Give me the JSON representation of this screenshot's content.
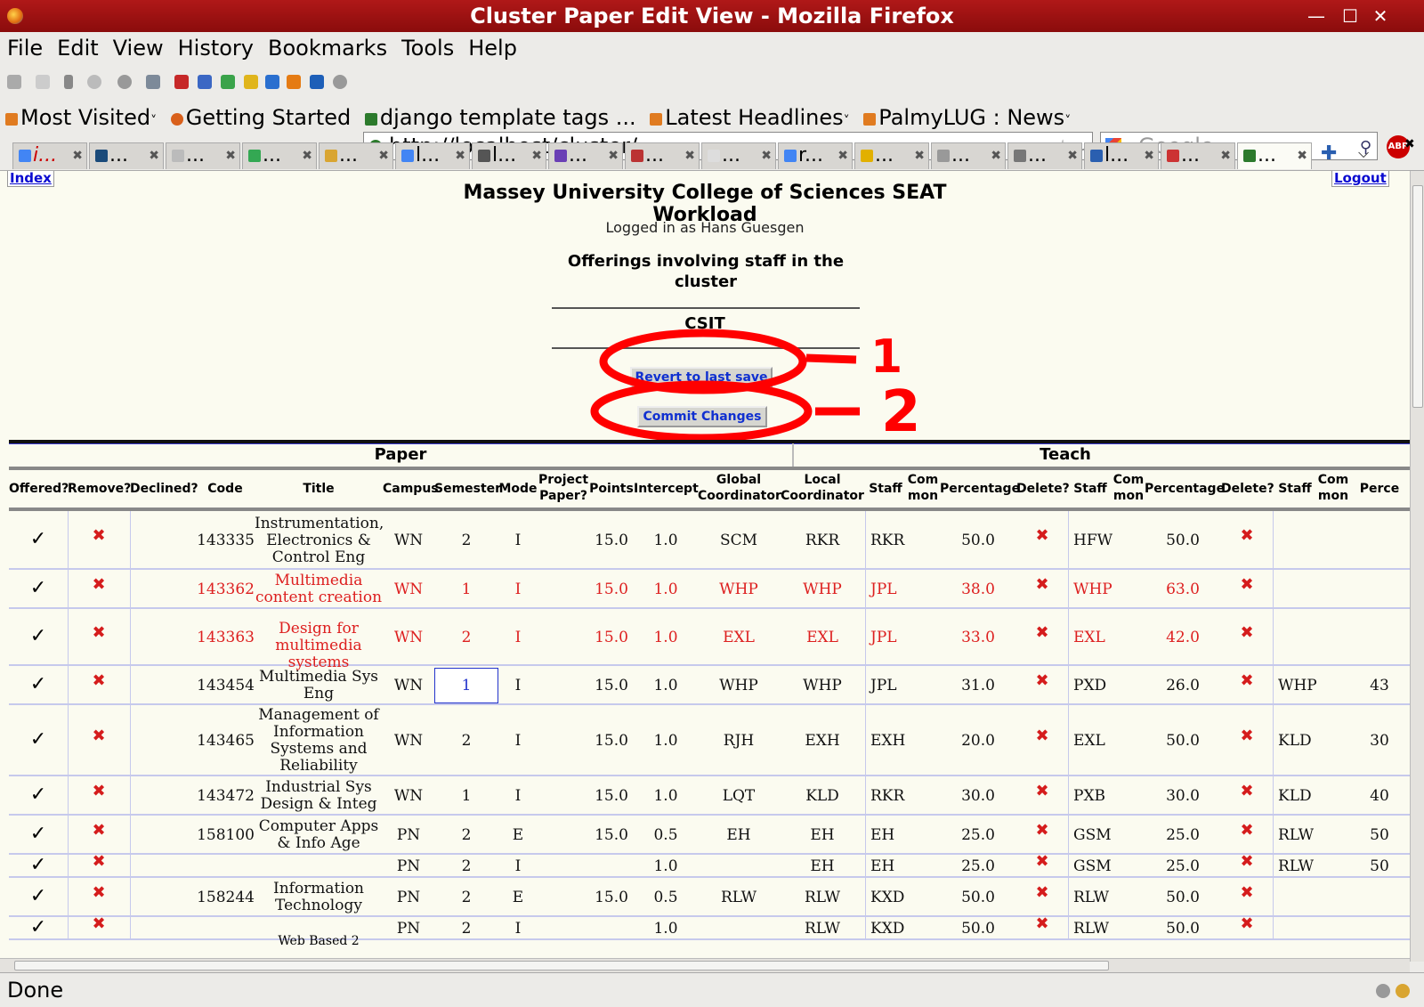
{
  "window": {
    "title": "Cluster Paper Edit View - Mozilla Firefox"
  },
  "menu": [
    "File",
    "Edit",
    "View",
    "History",
    "Bookmarks",
    "Tools",
    "Help"
  ],
  "url": "http://localhost/cluster/",
  "search_placeholder": "Google",
  "abp_label": "ABP",
  "bookmarks": [
    "Most Visited",
    "Getting Started",
    "django template tags ...",
    "Latest Headlines",
    "PalmyLUG : News"
  ],
  "tabs": [
    "i...",
    "...",
    "...",
    "...",
    "...",
    "l...",
    "l...",
    "...",
    "...",
    "...",
    "r...",
    "...",
    "...",
    "...",
    "l...",
    "...",
    "..."
  ],
  "page": {
    "index_link": "Index",
    "logout_link": "Logout",
    "heading": "Massey University College of Sciences SEAT Workload",
    "logged_in": "Logged in as Hans Guesgen",
    "offerings_title": "Offerings involving staff in the cluster",
    "cluster": "CSIT",
    "revert_button": "Revert to last save",
    "commit_button": "Commit Changes",
    "annotation_1": "1",
    "annotation_2": "2",
    "group_paper": "Paper",
    "group_teach": "Teach",
    "headers": [
      "Offered?",
      "Remove?",
      "Declined?",
      "Code",
      "Title",
      "Campus",
      "Semester",
      "Mode",
      "Project Paper?",
      "Points",
      "Intercept",
      "Global Coordinator",
      "Local Coordinator",
      "Staff",
      "Com mon",
      "Percentage",
      "Delete?",
      "Staff",
      "Com mon",
      "Percentage",
      "Delete?",
      "Staff",
      "Com mon",
      "Perce"
    ],
    "rows": [
      {
        "code": "143335",
        "title": "Instrumentation, Electronics & Control Eng",
        "campus": "WN",
        "semester": "2",
        "mode": "I",
        "points": "15.0",
        "intercept": "1.0",
        "global": "SCM",
        "local": "RKR",
        "staff1": "RKR",
        "pct1": "50.0",
        "staff2": "HFW",
        "pct2": "50.0",
        "staff3": "",
        "pct3": "",
        "red": false
      },
      {
        "code": "143362",
        "title": "Multimedia content creation",
        "campus": "WN",
        "semester": "1",
        "mode": "I",
        "points": "15.0",
        "intercept": "1.0",
        "global": "WHP",
        "local": "WHP",
        "staff1": "JPL",
        "pct1": "38.0",
        "staff2": "WHP",
        "pct2": "63.0",
        "staff3": "",
        "pct3": "",
        "red": true
      },
      {
        "code": "143363",
        "title": "Design for multimedia systems",
        "campus": "WN",
        "semester": "2",
        "mode": "I",
        "points": "15.0",
        "intercept": "1.0",
        "global": "EXL",
        "local": "EXL",
        "staff1": "JPL",
        "pct1": "33.0",
        "staff2": "EXL",
        "pct2": "42.0",
        "staff3": "",
        "pct3": "",
        "red": true
      },
      {
        "code": "143454",
        "title": "Multimedia Sys Eng",
        "campus": "WN",
        "semester": "1",
        "mode": "I",
        "points": "15.0",
        "intercept": "1.0",
        "global": "WHP",
        "local": "WHP",
        "staff1": "JPL",
        "pct1": "31.0",
        "staff2": "PXD",
        "pct2": "26.0",
        "staff3": "WHP",
        "pct3": "43",
        "red": false,
        "editing": true
      },
      {
        "code": "143465",
        "title": "Management of Information Systems and Reliability",
        "campus": "WN",
        "semester": "2",
        "mode": "I",
        "points": "15.0",
        "intercept": "1.0",
        "global": "RJH",
        "local": "EXH",
        "staff1": "EXH",
        "pct1": "20.0",
        "staff2": "EXL",
        "pct2": "50.0",
        "staff3": "KLD",
        "pct3": "30",
        "red": false
      },
      {
        "code": "143472",
        "title": "Industrial Sys Design & Integ",
        "campus": "WN",
        "semester": "1",
        "mode": "I",
        "points": "15.0",
        "intercept": "1.0",
        "global": "LQT",
        "local": "KLD",
        "staff1": "RKR",
        "pct1": "30.0",
        "staff2": "PXB",
        "pct2": "30.0",
        "staff3": "KLD",
        "pct3": "40",
        "red": false
      },
      {
        "code": "158100",
        "title": "Computer Apps & Info Age",
        "campus": "PN",
        "semester": "2",
        "mode": "E",
        "points": "15.0",
        "intercept": "0.5",
        "global": "EH",
        "local": "EH",
        "staff1": "EH",
        "pct1": "25.0",
        "staff2": "GSM",
        "pct2": "25.0",
        "staff3": "RLW",
        "pct3": "50",
        "red": false
      },
      {
        "code": "",
        "title": "",
        "campus": "PN",
        "semester": "2",
        "mode": "I",
        "points": "",
        "intercept": "1.0",
        "global": "",
        "local": "EH",
        "staff1": "EH",
        "pct1": "25.0",
        "staff2": "GSM",
        "pct2": "25.0",
        "staff3": "RLW",
        "pct3": "50",
        "red": false
      },
      {
        "code": "158244",
        "title": "Information Technology",
        "campus": "PN",
        "semester": "2",
        "mode": "E",
        "points": "15.0",
        "intercept": "0.5",
        "global": "RLW",
        "local": "RLW",
        "staff1": "KXD",
        "pct1": "50.0",
        "staff2": "RLW",
        "pct2": "50.0",
        "staff3": "",
        "pct3": "",
        "red": false
      },
      {
        "code": "",
        "title": "",
        "campus": "PN",
        "semester": "2",
        "mode": "I",
        "points": "",
        "intercept": "1.0",
        "global": "",
        "local": "RLW",
        "staff1": "KXD",
        "pct1": "50.0",
        "staff2": "RLW",
        "pct2": "50.0",
        "staff3": "",
        "pct3": "",
        "red": false
      }
    ],
    "partial_next_title": "Web Based 2"
  },
  "status": "Done",
  "colors": {
    "titlebar": "#9c1010",
    "link": "#0a0ad0",
    "red_text": "#dd1f1f",
    "cross": "#d51c1c",
    "annotation": "#ff0000"
  }
}
